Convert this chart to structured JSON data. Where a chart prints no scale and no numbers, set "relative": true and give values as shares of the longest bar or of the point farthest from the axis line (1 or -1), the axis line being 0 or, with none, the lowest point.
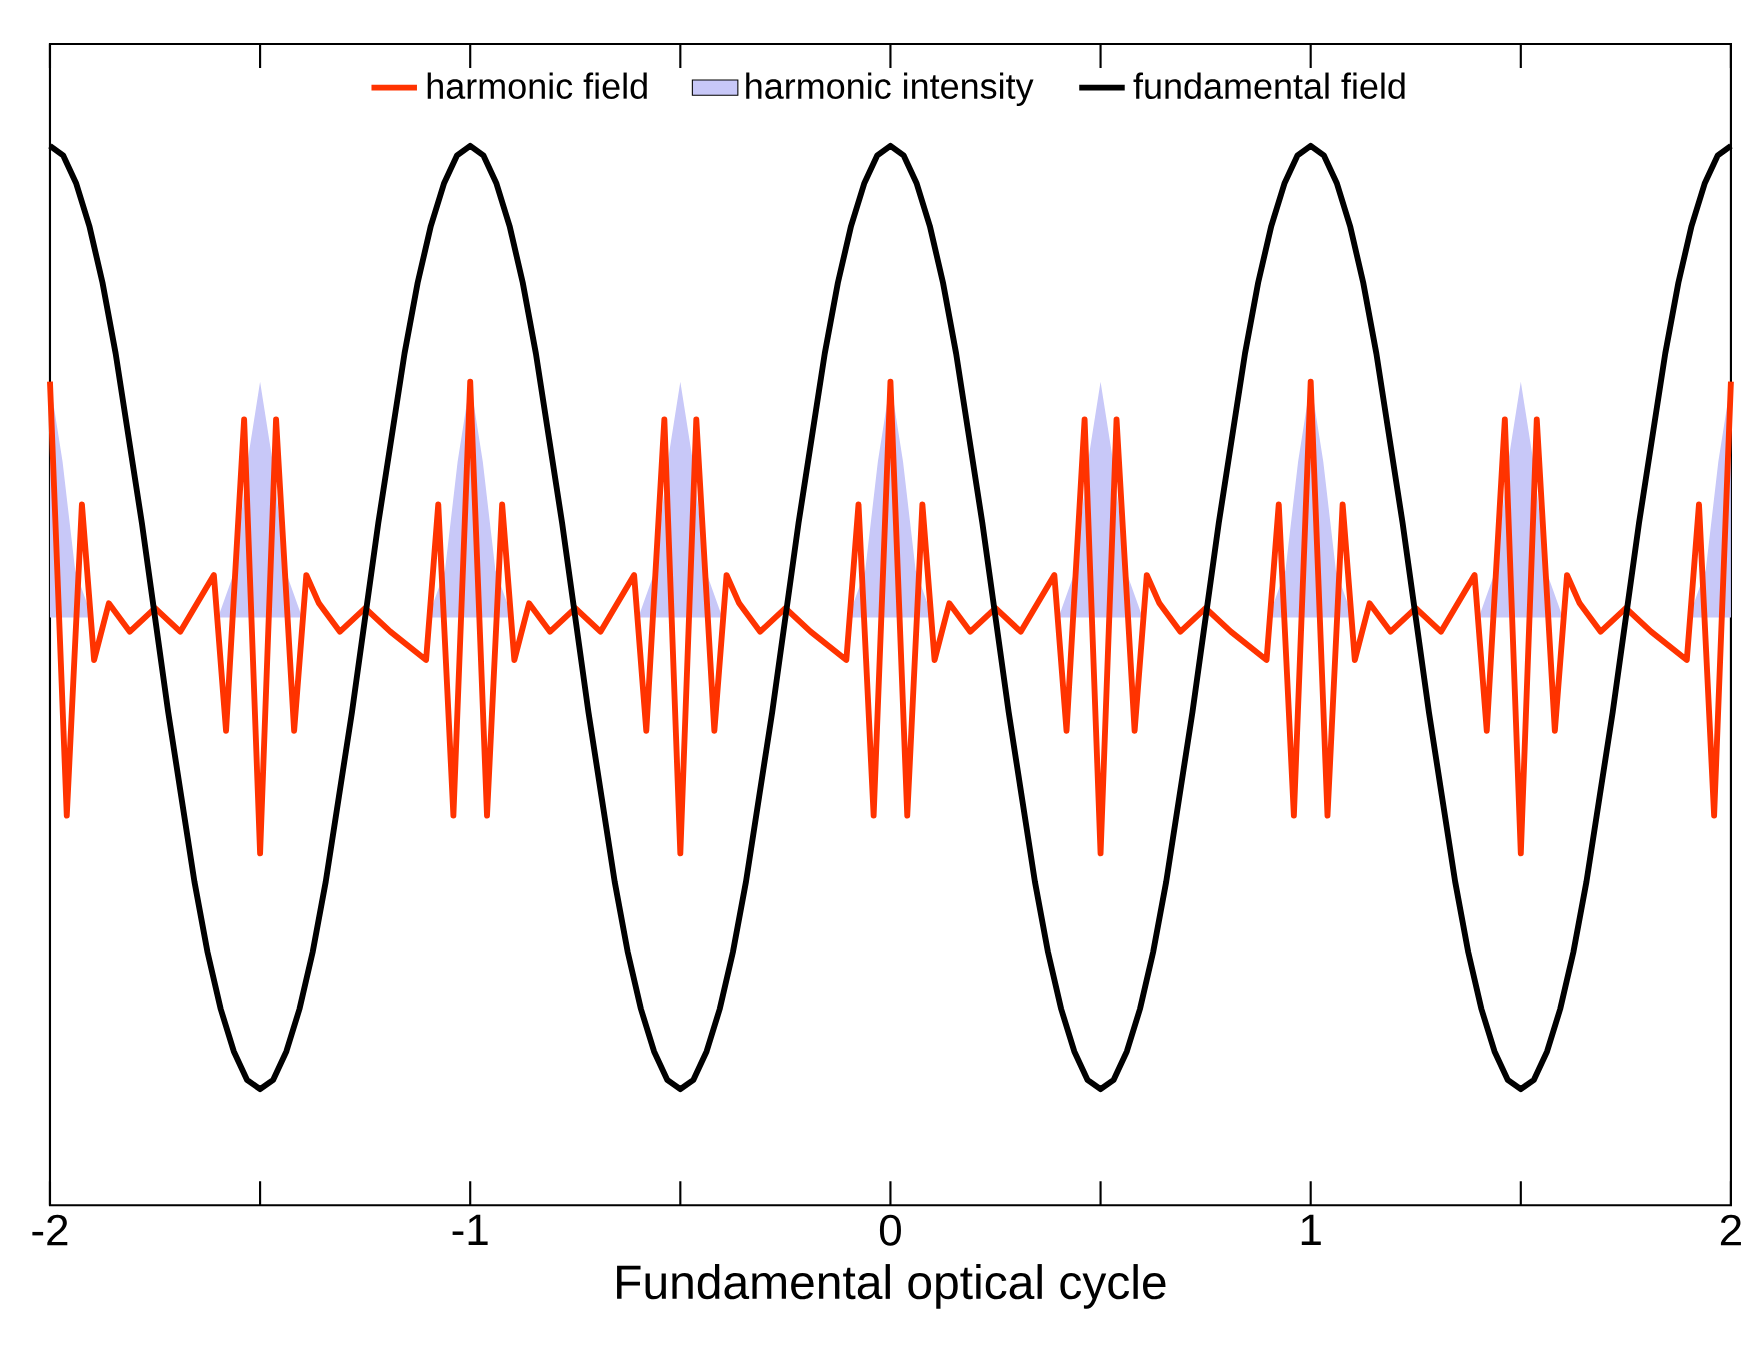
{
  "chart_data": {
    "type": "line",
    "relative": true,
    "xlabel": "Fundamental optical cycle",
    "xlim": [
      -2,
      2
    ],
    "xticks": [
      -2,
      -1,
      0,
      1,
      2
    ],
    "tick_labels": "x",
    "legend": "top",
    "grid": false,
    "series": [
      {
        "name": "harmonic field",
        "type": "line",
        "color": "#ff3300",
        "x": [
          -2,
          -1.96,
          -1.924,
          -1.895,
          -1.86,
          -1.81,
          -1.75,
          -1.69,
          -1.61,
          -1.581,
          -1.538,
          -1.5,
          -1.462,
          -1.419,
          -1.39,
          -1.36,
          -1.31,
          -1.25,
          -1.19,
          -1.105,
          -1.076,
          -1.04,
          -1,
          -0.96,
          -0.924,
          -0.895,
          -0.86,
          -0.81,
          -0.75,
          -0.69,
          -0.61,
          -0.581,
          -0.538,
          -0.5,
          -0.462,
          -0.419,
          -0.39,
          -0.36,
          -0.31,
          -0.25,
          -0.19,
          -0.105,
          -0.076,
          -0.04,
          0,
          0.04,
          0.076,
          0.105,
          0.14,
          0.19,
          0.25,
          0.31,
          0.39,
          0.419,
          0.462,
          0.5,
          0.538,
          0.581,
          0.61,
          0.64,
          0.69,
          0.75,
          0.81,
          0.895,
          0.924,
          0.96,
          1,
          1.04,
          1.076,
          1.105,
          1.14,
          1.19,
          1.25,
          1.31,
          1.39,
          1.419,
          1.462,
          1.5,
          1.538,
          1.581,
          1.61,
          1.64,
          1.69,
          1.75,
          1.81,
          1.895,
          1.924,
          1.96,
          2
        ],
        "values": [
          0.75,
          0.29,
          0.62,
          0.455,
          0.515,
          0.485,
          0.51,
          0.485,
          0.545,
          0.38,
          0.71,
          0.25,
          0.71,
          0.38,
          0.545,
          0.515,
          0.485,
          0.51,
          0.485,
          0.455,
          0.62,
          0.29,
          0.75,
          0.29,
          0.62,
          0.455,
          0.515,
          0.485,
          0.51,
          0.485,
          0.545,
          0.38,
          0.71,
          0.25,
          0.71,
          0.38,
          0.545,
          0.515,
          0.485,
          0.51,
          0.485,
          0.455,
          0.62,
          0.29,
          0.75,
          0.29,
          0.62,
          0.455,
          0.515,
          0.485,
          0.51,
          0.485,
          0.545,
          0.38,
          0.71,
          0.25,
          0.71,
          0.38,
          0.545,
          0.515,
          0.485,
          0.51,
          0.485,
          0.455,
          0.62,
          0.29,
          0.75,
          0.29,
          0.62,
          0.455,
          0.515,
          0.485,
          0.51,
          0.485,
          0.545,
          0.38,
          0.71,
          0.25,
          0.71,
          0.38,
          0.545,
          0.515,
          0.485,
          0.51,
          0.485,
          0.455,
          0.62,
          0.29,
          0.75
        ]
      },
      {
        "name": "harmonic intensity",
        "type": "area",
        "color": "#c8c8f8",
        "x": [
          -2,
          -1.97,
          -1.94,
          -1.9,
          -1.6,
          -1.56,
          -1.53,
          -1.5,
          -1.47,
          -1.44,
          -1.4,
          -1.1,
          -1.06,
          -1.03,
          -1,
          -0.97,
          -0.94,
          -0.9,
          -0.6,
          -0.56,
          -0.53,
          -0.5,
          -0.47,
          -0.44,
          -0.4,
          -0.1,
          -0.06,
          -0.03,
          0,
          0.03,
          0.06,
          0.1,
          0.4,
          0.44,
          0.47,
          0.5,
          0.53,
          0.56,
          0.6,
          0.9,
          0.94,
          0.97,
          1,
          1.03,
          1.06,
          1.1,
          1.4,
          1.44,
          1.47,
          1.5,
          1.53,
          1.56,
          1.6,
          1.9,
          1.94,
          1.97,
          2
        ],
        "values": [
          0.75,
          0.665,
          0.55,
          0.5,
          0.5,
          0.55,
          0.665,
          0.75,
          0.665,
          0.55,
          0.5,
          0.5,
          0.55,
          0.665,
          0.75,
          0.665,
          0.55,
          0.5,
          0.5,
          0.55,
          0.665,
          0.75,
          0.665,
          0.55,
          0.5,
          0.5,
          0.55,
          0.665,
          0.75,
          0.665,
          0.55,
          0.5,
          0.5,
          0.55,
          0.665,
          0.75,
          0.665,
          0.55,
          0.5,
          0.5,
          0.55,
          0.665,
          0.75,
          0.665,
          0.55,
          0.5,
          0.5,
          0.55,
          0.665,
          0.75,
          0.665,
          0.55,
          0.5,
          0.5,
          0.55,
          0.665,
          0.75
        ]
      },
      {
        "name": "fundamental field",
        "type": "line",
        "color": "#000000",
        "x": [
          -2,
          -1.96875,
          -1.9375,
          -1.90625,
          -1.875,
          -1.84375,
          -1.8125,
          -1.78125,
          -1.75,
          -1.71875,
          -1.6875,
          -1.65625,
          -1.625,
          -1.59375,
          -1.5625,
          -1.53125,
          -1.5,
          -1.46875,
          -1.4375,
          -1.40625,
          -1.375,
          -1.34375,
          -1.3125,
          -1.28125,
          -1.25,
          -1.21875,
          -1.1875,
          -1.15625,
          -1.125,
          -1.09375,
          -1.0625,
          -1.03125,
          -1,
          -0.96875,
          -0.9375,
          -0.90625,
          -0.875,
          -0.84375,
          -0.8125,
          -0.78125,
          -0.75,
          -0.71875,
          -0.6875,
          -0.65625,
          -0.625,
          -0.59375,
          -0.5625,
          -0.53125,
          -0.5,
          -0.46875,
          -0.4375,
          -0.40625,
          -0.375,
          -0.34375,
          -0.3125,
          -0.28125,
          -0.25,
          -0.21875,
          -0.1875,
          -0.15625,
          -0.125,
          -0.09375,
          -0.0625,
          -0.03125,
          0,
          0.03125,
          0.0625,
          0.09375,
          0.125,
          0.15625,
          0.1875,
          0.21875,
          0.25,
          0.28125,
          0.3125,
          0.34375,
          0.375,
          0.40625,
          0.4375,
          0.46875,
          0.5,
          0.53125,
          0.5625,
          0.59375,
          0.625,
          0.65625,
          0.6875,
          0.71875,
          0.75,
          0.78125,
          0.8125,
          0.84375,
          0.875,
          0.90625,
          0.9375,
          0.96875,
          1,
          1.03125,
          1.0625,
          1.09375,
          1.125,
          1.15625,
          1.1875,
          1.21875,
          1.25,
          1.28125,
          1.3125,
          1.34375,
          1.375,
          1.40625,
          1.4375,
          1.46875,
          1.5,
          1.53125,
          1.5625,
          1.59375,
          1.625,
          1.65625,
          1.6875,
          1.71875,
          1.75,
          1.78125,
          1.8125,
          1.84375,
          1.875,
          1.90625,
          1.9375,
          1.96875,
          2
        ],
        "values": [
          1,
          0.99,
          0.96,
          0.915,
          0.855,
          0.78,
          0.69,
          0.6,
          0.5,
          0.4,
          0.31,
          0.22,
          0.145,
          0.085,
          0.04,
          0.01,
          0,
          0.01,
          0.04,
          0.085,
          0.145,
          0.22,
          0.31,
          0.4,
          0.5,
          0.6,
          0.69,
          0.78,
          0.855,
          0.915,
          0.96,
          0.99,
          1,
          0.99,
          0.96,
          0.915,
          0.855,
          0.78,
          0.69,
          0.6,
          0.5,
          0.4,
          0.31,
          0.22,
          0.145,
          0.085,
          0.04,
          0.01,
          0,
          0.01,
          0.04,
          0.085,
          0.145,
          0.22,
          0.31,
          0.4,
          0.5,
          0.6,
          0.69,
          0.78,
          0.855,
          0.915,
          0.96,
          0.99,
          1,
          0.99,
          0.96,
          0.915,
          0.855,
          0.78,
          0.69,
          0.6,
          0.5,
          0.4,
          0.31,
          0.22,
          0.145,
          0.085,
          0.04,
          0.01,
          0,
          0.01,
          0.04,
          0.085,
          0.145,
          0.22,
          0.31,
          0.4,
          0.5,
          0.6,
          0.69,
          0.78,
          0.855,
          0.915,
          0.96,
          0.99,
          1,
          0.99,
          0.96,
          0.915,
          0.855,
          0.78,
          0.69,
          0.6,
          0.5,
          0.4,
          0.31,
          0.22,
          0.145,
          0.085,
          0.04,
          0.01,
          0,
          0.01,
          0.04,
          0.085,
          0.145,
          0.22,
          0.31,
          0.4,
          0.5,
          0.6,
          0.69,
          0.78,
          0.855,
          0.915,
          0.96,
          0.99,
          1
        ]
      }
    ]
  }
}
